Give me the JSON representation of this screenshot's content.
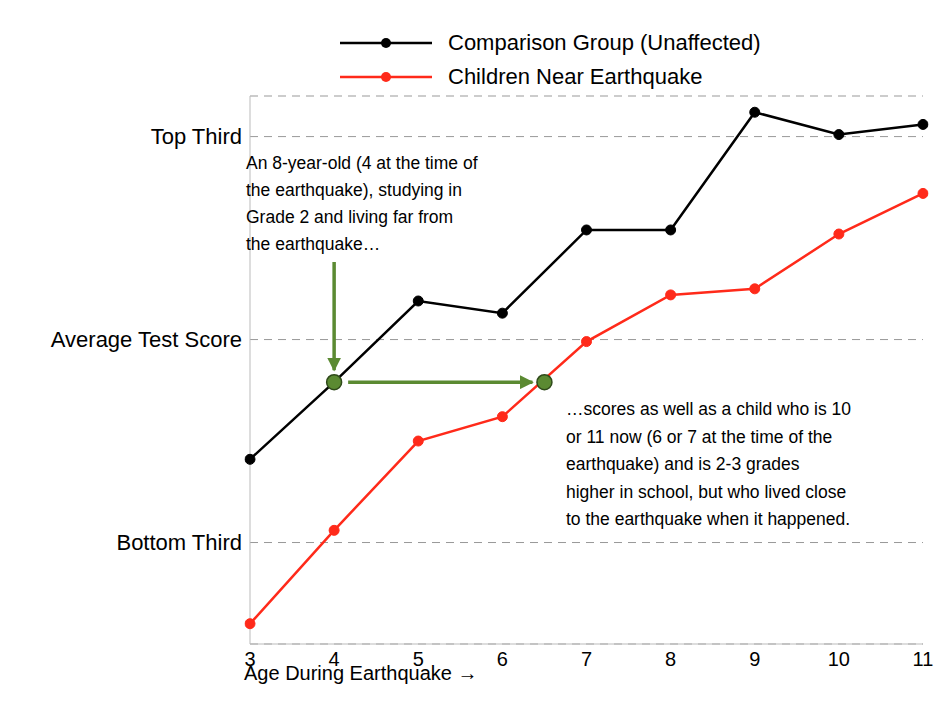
{
  "chart_data": {
    "type": "line",
    "xlabel": "Age During Earthquake →",
    "x": [
      3,
      4,
      5,
      6,
      7,
      8,
      9,
      10,
      11
    ],
    "xlim": [
      3,
      11
    ],
    "xticks": [
      3,
      4,
      5,
      6,
      7,
      8,
      9,
      10,
      11
    ],
    "ylim": [
      0.5,
      3.2
    ],
    "yticks": [
      {
        "value": 1,
        "label": "Bottom Third"
      },
      {
        "value": 2,
        "label": "Average Test Score"
      },
      {
        "value": 3,
        "label": "Top Third"
      }
    ],
    "grid": true,
    "legend": "top",
    "series": [
      {
        "name": "Comparison Group (Unaffected)",
        "color": "#000000",
        "marker": "circle",
        "values": [
          1.41,
          1.79,
          2.19,
          2.13,
          2.54,
          2.54,
          3.12,
          3.01,
          3.06
        ]
      },
      {
        "name": "Children Near Earthquake",
        "color": "#ff2a1a",
        "marker": "circle",
        "values": [
          0.6,
          1.06,
          1.5,
          1.62,
          1.99,
          2.22,
          2.25,
          2.52,
          2.72
        ]
      }
    ],
    "annotations": [
      {
        "x": 4,
        "y": 1.79,
        "color": "#5b8a32",
        "text": [
          "An 8-year-old (4 at the time of",
          "the earthquake), studying in",
          "Grade 2 and living far from",
          "the earthquake…"
        ]
      },
      {
        "x": 6.5,
        "y": 1.79,
        "color": "#5b8a32",
        "text": [
          "…scores as well as a child who is 10",
          "or 11 now (6 or 7 at the time of the",
          "earthquake) and is 2-3 grades",
          "higher in school, but who lived close",
          "to the earthquake when it happened."
        ]
      }
    ]
  }
}
